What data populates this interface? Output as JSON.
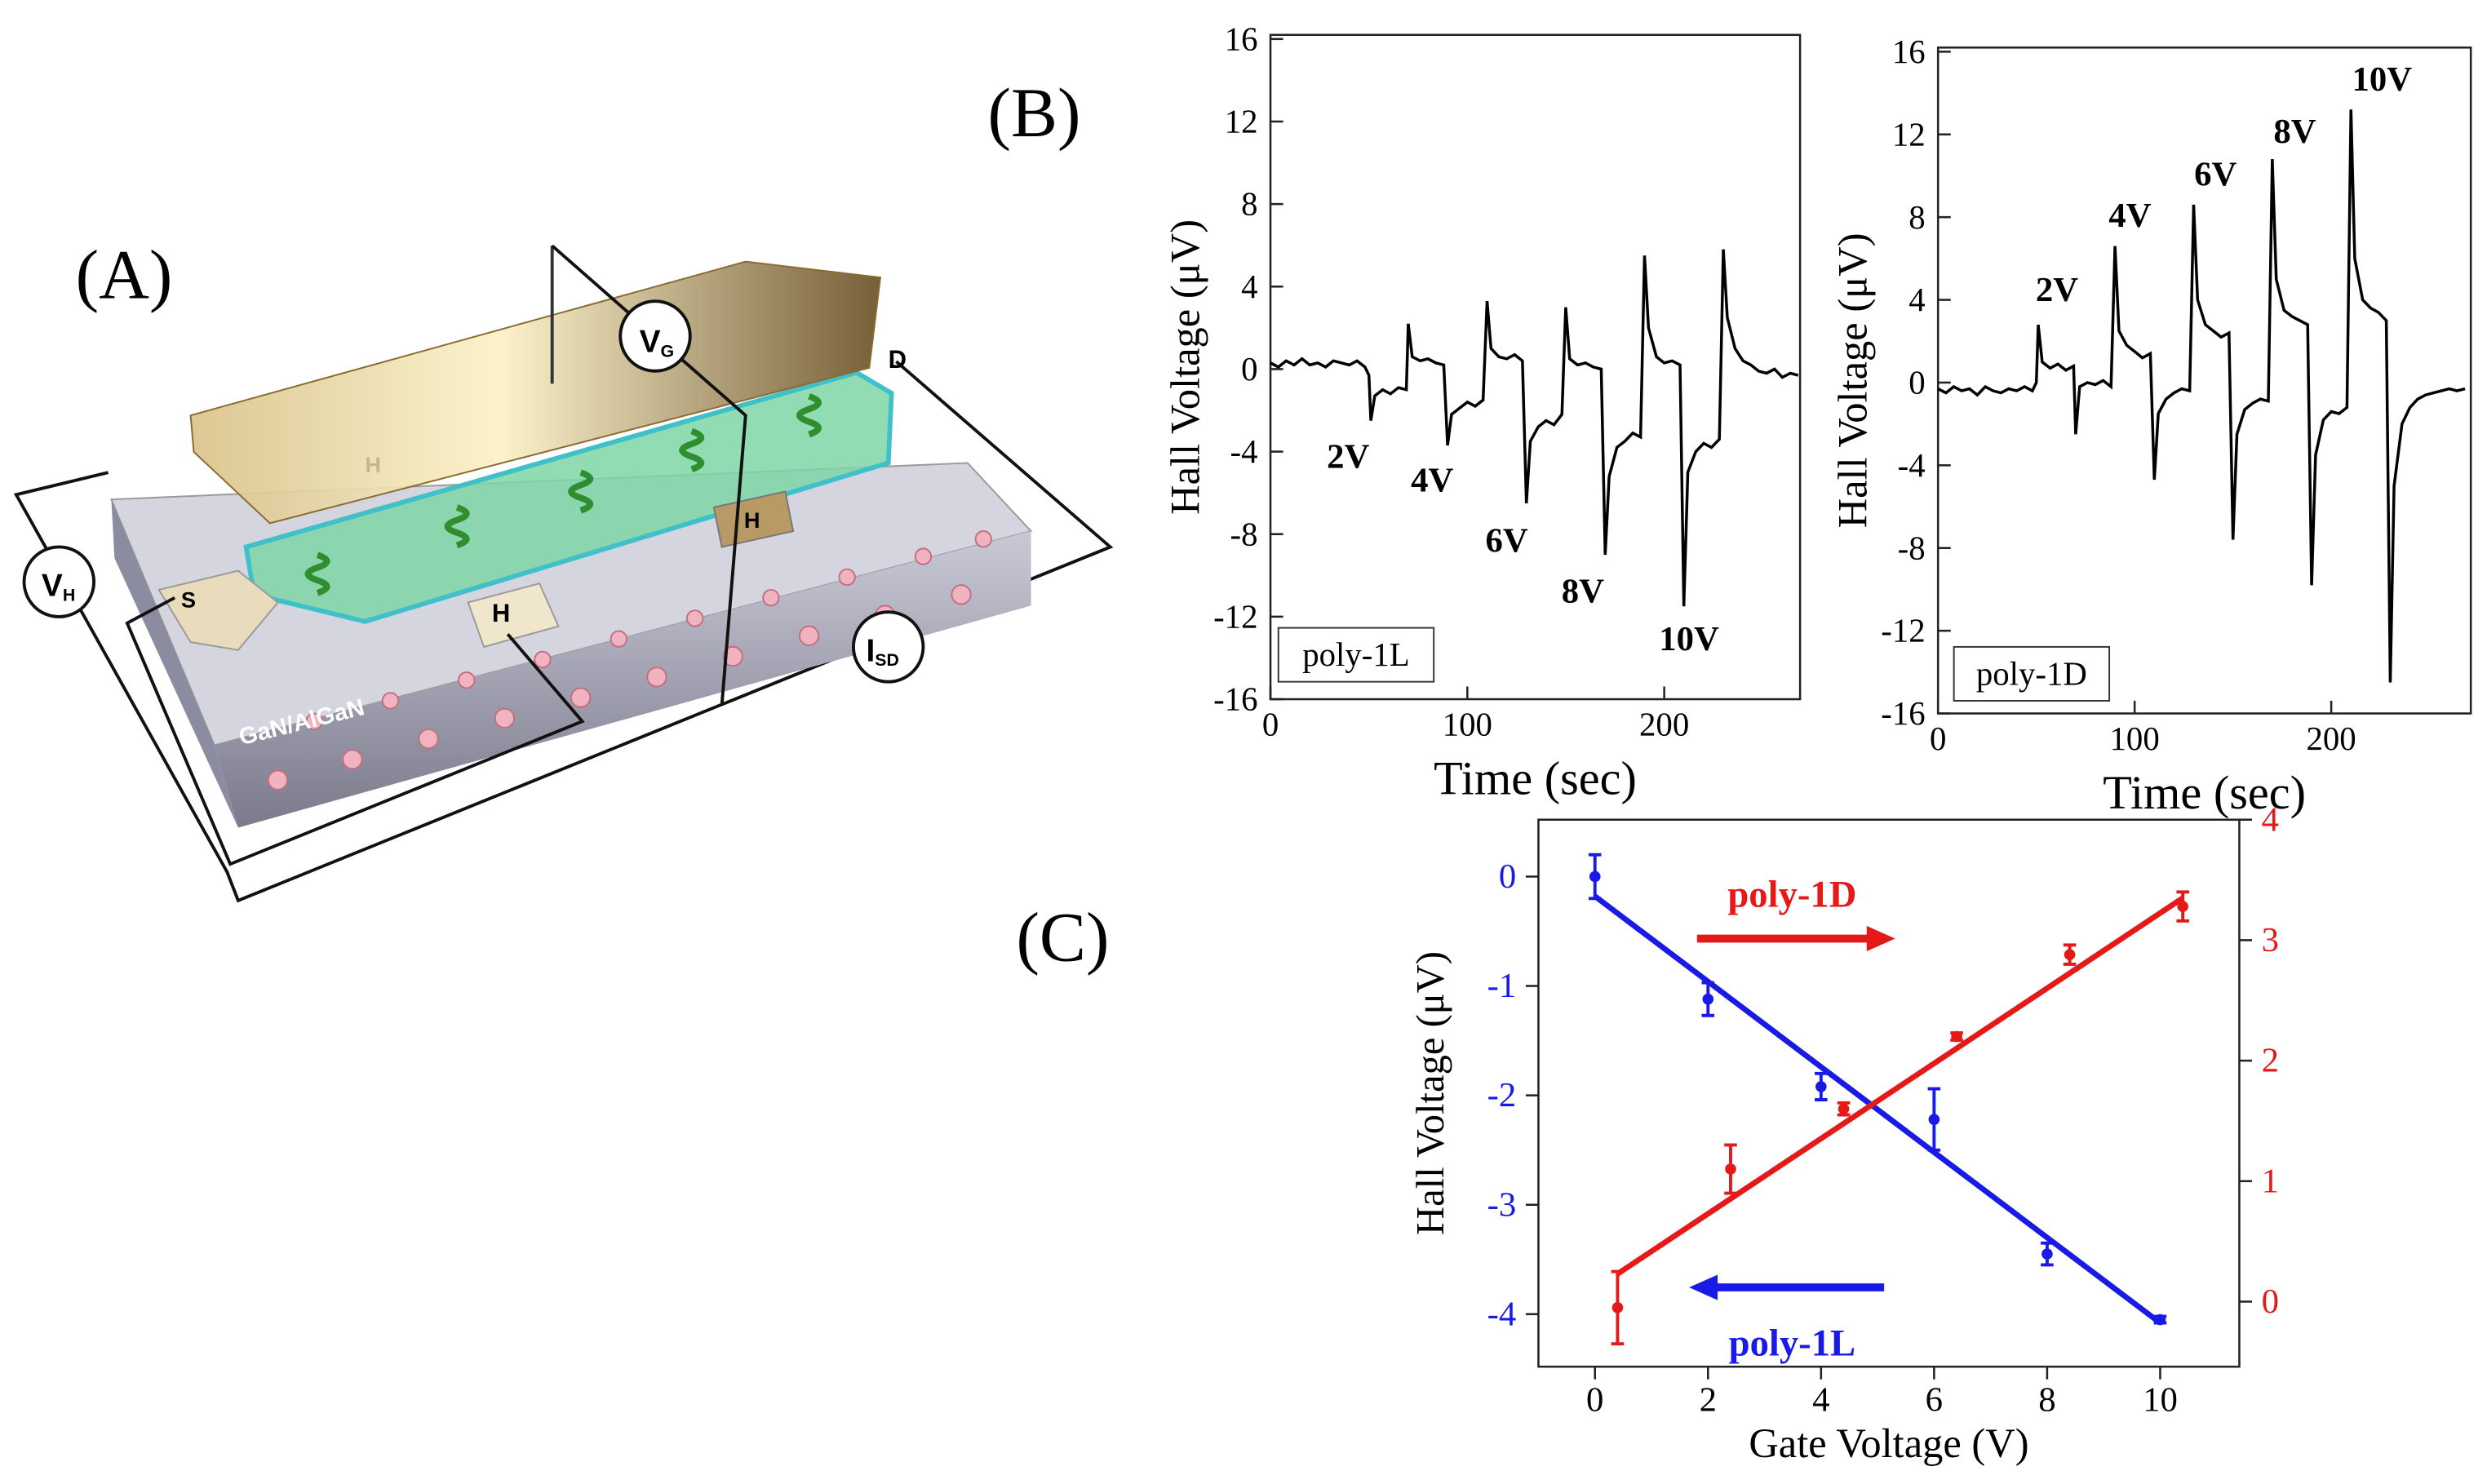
{
  "panel_labels": [
    "(A)",
    "(B)",
    "(C)"
  ],
  "diagram": {
    "labels": [
      {
        "text": "V",
        "subscript": "G"
      },
      {
        "text": "D"
      },
      {
        "text": "H"
      },
      {
        "text": "H"
      },
      {
        "text": "H"
      },
      {
        "text": "S"
      },
      {
        "text": "V",
        "subscript": "H"
      },
      {
        "text": "I",
        "subscript": "SD"
      },
      {
        "text": "GaN/AlGaN"
      }
    ]
  },
  "chart_data": [
    {
      "type": "line",
      "xlabel": "Time (sec)",
      "ylabel": "Hall Voltage (μV)",
      "annotation": "poly-1L",
      "annotations": [
        "2V",
        "4V",
        "6V",
        "8V",
        "10V"
      ],
      "xlim": [
        0,
        269
      ],
      "ylim": [
        -16,
        16.2
      ],
      "xticks": [
        0,
        100,
        200
      ],
      "yticks": [
        -16,
        -12,
        -8,
        -4,
        0,
        4,
        8,
        12,
        16
      ],
      "color": "#000000",
      "x": [
        0,
        4,
        8,
        12,
        16,
        20,
        24,
        28,
        32,
        36,
        40,
        44,
        48,
        50,
        51,
        53,
        57,
        61,
        65,
        69,
        70,
        72,
        76,
        80,
        84,
        88,
        90,
        92,
        96,
        100,
        104,
        108,
        110,
        112,
        116,
        120,
        124,
        128,
        130,
        132,
        136,
        140,
        144,
        148,
        150,
        152,
        156,
        160,
        164,
        168,
        170,
        172,
        176,
        180,
        184,
        188,
        190,
        192,
        196,
        200,
        204,
        208,
        210,
        212,
        216,
        220,
        224,
        228,
        230,
        232,
        236,
        240,
        244,
        248,
        252,
        256,
        260,
        264,
        268
      ],
      "values": [
        0.3,
        0.1,
        0.4,
        0.2,
        0.5,
        0.2,
        0.3,
        0.1,
        0.4,
        0.3,
        0.2,
        0.4,
        0.1,
        -0.3,
        -2.5,
        -1.3,
        -1.0,
        -1.2,
        -0.9,
        -1.0,
        2.2,
        0.6,
        0.4,
        0.5,
        0.3,
        0.2,
        -3.7,
        -2.2,
        -1.9,
        -1.6,
        -1.8,
        -1.5,
        3.3,
        1.0,
        0.6,
        0.5,
        0.7,
        0.4,
        -6.5,
        -3.5,
        -2.8,
        -2.5,
        -2.7,
        -2.2,
        3.0,
        0.5,
        0.2,
        0.3,
        0.1,
        0.0,
        -9.0,
        -5.2,
        -3.8,
        -3.5,
        -3.1,
        -3.3,
        5.5,
        2.0,
        0.6,
        0.3,
        0.4,
        0.2,
        -11.5,
        -5.0,
        -4.0,
        -3.6,
        -3.8,
        -3.4,
        5.8,
        2.5,
        1.0,
        0.4,
        0.2,
        -0.1,
        -0.2,
        0.0,
        -0.4,
        -0.2,
        -0.3
      ]
    },
    {
      "type": "line",
      "xlabel": "Time (sec)",
      "ylabel": "Hall Voltage (μV)",
      "annotation": "poly-1D",
      "annotations": [
        "2V",
        "4V",
        "6V",
        "8V",
        "10V"
      ],
      "xlim": [
        0,
        271
      ],
      "ylim": [
        -16,
        16.2
      ],
      "xticks": [
        0,
        100,
        200
      ],
      "yticks": [
        -16,
        -12,
        -8,
        -4,
        0,
        4,
        8,
        12,
        16
      ],
      "color": "#000000",
      "x": [
        0,
        4,
        8,
        12,
        16,
        20,
        24,
        28,
        32,
        36,
        40,
        44,
        48,
        50,
        51,
        53,
        57,
        61,
        65,
        69,
        70,
        72,
        76,
        80,
        84,
        88,
        90,
        92,
        96,
        100,
        104,
        108,
        110,
        112,
        116,
        120,
        124,
        128,
        130,
        132,
        136,
        140,
        144,
        148,
        150,
        152,
        156,
        160,
        164,
        168,
        170,
        172,
        176,
        180,
        184,
        188,
        190,
        192,
        196,
        200,
        204,
        208,
        210,
        212,
        216,
        220,
        224,
        228,
        230,
        232,
        236,
        240,
        244,
        248,
        252,
        256,
        260,
        264,
        268
      ],
      "values": [
        -0.3,
        -0.5,
        -0.2,
        -0.4,
        -0.3,
        -0.6,
        -0.2,
        -0.4,
        -0.5,
        -0.3,
        -0.4,
        -0.2,
        -0.4,
        0.0,
        2.8,
        1.0,
        0.7,
        0.9,
        0.6,
        0.8,
        -2.5,
        -0.2,
        0.0,
        -0.1,
        0.1,
        -0.2,
        6.6,
        2.5,
        1.8,
        1.5,
        1.2,
        1.4,
        -4.7,
        -1.5,
        -0.8,
        -0.5,
        -0.3,
        -0.4,
        8.6,
        4.0,
        2.8,
        2.5,
        2.2,
        2.4,
        -7.6,
        -2.5,
        -1.3,
        -1.0,
        -0.8,
        -0.9,
        10.8,
        5.0,
        3.5,
        3.2,
        3.0,
        2.8,
        -9.8,
        -3.5,
        -1.8,
        -1.4,
        -1.5,
        -1.2,
        13.2,
        6.0,
        4.0,
        3.6,
        3.4,
        3.0,
        -14.5,
        -5.0,
        -2.0,
        -1.2,
        -0.8,
        -0.6,
        -0.5,
        -0.4,
        -0.3,
        -0.4,
        -0.3
      ]
    },
    {
      "type": "scatter",
      "xlabel": "Gate Voltage (V)",
      "ylabel": "Hall Voltage (μV)",
      "xlim": [
        -1,
        11.4
      ],
      "ylim": [
        -4.48,
        0.52
      ],
      "y2lim": [
        -0.54,
        4
      ],
      "xticks": [
        0,
        2,
        4,
        6,
        8,
        10
      ],
      "yticks": [
        -4,
        -3,
        -2,
        -1,
        0
      ],
      "y2ticks": [
        0,
        1,
        2,
        3,
        4
      ],
      "series": [
        {
          "name": "poly-1L",
          "color": "#1a1ae6",
          "x": [
            0,
            2,
            4,
            6,
            8,
            10
          ],
          "values": [
            0,
            -1.12,
            -1.92,
            -2.22,
            -3.45,
            -4.05
          ],
          "errors": [
            0.2,
            0.15,
            0.12,
            0.28,
            0.1,
            0.03
          ],
          "fit": {
            "x": [
              0,
              10
            ],
            "values": [
              -0.18,
              -4.08
            ]
          }
        },
        {
          "name": "poly-1D",
          "color": "#e61919",
          "axis": "y2",
          "x": [
            0.4,
            2.4,
            4.4,
            6.4,
            8.4,
            10.4
          ],
          "values": [
            -0.05,
            1.1,
            1.6,
            2.2,
            2.88,
            3.28
          ],
          "errors": [
            0.3,
            0.2,
            0.05,
            0.03,
            0.08,
            0.12
          ],
          "fit": {
            "x": [
              0.4,
              10.4
            ],
            "values": [
              0.23,
              3.35
            ]
          }
        }
      ]
    }
  ]
}
